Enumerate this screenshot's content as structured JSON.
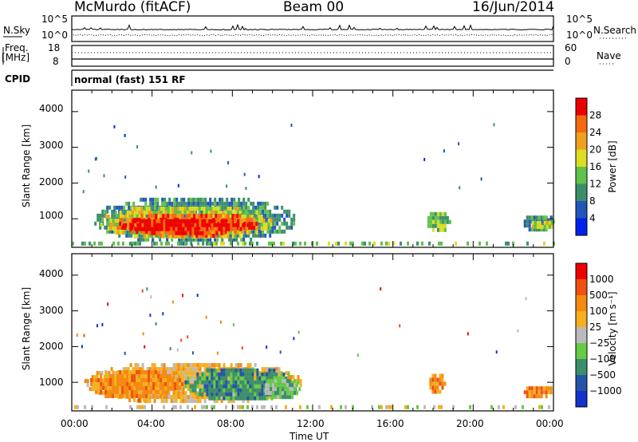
{
  "header": {
    "station": "McMurdo (fitACF)",
    "beam": "Beam 00",
    "date": "16/Jun/2014"
  },
  "top_panels": {
    "nsky_label": "N.Sky",
    "nsky_ticks": [
      "10^5",
      "10^0"
    ],
    "nsearch_label": "N.Search",
    "nsearch_ticks": [
      "10^5",
      "10^0"
    ],
    "freq_label_1": "Freq.",
    "freq_label_2": "[MHz]",
    "freq_ticks": [
      "18",
      "8"
    ],
    "nave_label": "Nave",
    "nave_ticks": [
      "60",
      "0"
    ],
    "cpid_label": "CPID",
    "cpid_text": "normal (fast) 151 RF"
  },
  "chart_data": [
    {
      "type": "heatmap",
      "name": "power",
      "ylabel": "Slant Range [km]",
      "ylim": [
        200,
        4600
      ],
      "yticks": [
        "1000",
        "2000",
        "3000",
        "4000"
      ],
      "colorbar_label": "Power [dB]",
      "colorbar_ticks": [
        "4",
        "8",
        "12",
        "16",
        "20",
        "24",
        "28"
      ],
      "colorbar_colors": [
        "#0022ee",
        "#2255bb",
        "#3a8f6a",
        "#5fc24a",
        "#dddd22",
        "#f0a020",
        "#f56a10",
        "#ee0000"
      ],
      "regions": [
        {
          "x0": 1.0,
          "x1": 11.2,
          "y0": 350,
          "y1": 1700,
          "level": 2
        },
        {
          "x0": 1.3,
          "x1": 10.0,
          "y0": 450,
          "y1": 1450,
          "level": 4
        },
        {
          "x0": 2.0,
          "x1": 9.3,
          "y0": 550,
          "y1": 1250,
          "level": 6
        },
        {
          "x0": 2.4,
          "x1": 8.8,
          "y0": 600,
          "y1": 1100,
          "level": 7
        },
        {
          "x0": 17.6,
          "x1": 18.8,
          "y0": 650,
          "y1": 1300,
          "level": 3
        },
        {
          "x0": 22.4,
          "x1": 24.0,
          "y0": 650,
          "y1": 1200,
          "level": 2
        },
        {
          "x0": 22.8,
          "x1": 24.0,
          "y0": 750,
          "y1": 1050,
          "level": 4
        },
        {
          "x0": 0.0,
          "x1": 24.0,
          "y0": 250,
          "y1": 360,
          "level": 3
        }
      ]
    },
    {
      "type": "heatmap",
      "name": "velocity",
      "ylabel": "Slant Range [km]",
      "ylim": [
        200,
        4600
      ],
      "yticks": [
        "1000",
        "2000",
        "3000",
        "4000"
      ],
      "xticks": [
        "00:00",
        "04:00",
        "08:00",
        "12:00",
        "16:00",
        "20:00",
        "00:00"
      ],
      "xlabel": "Time UT",
      "colorbar_label": "Velocity [m s⁻¹]",
      "colorbar_ticks": [
        "1000",
        "500",
        "100",
        "25",
        "−25",
        "−100",
        "−500",
        "−1000"
      ],
      "colorbar_colors": [
        "#1133cc",
        "#2255aa",
        "#3a8f6a",
        "#66cc44",
        "#bbbbbb",
        "#f5b020",
        "#f58a10",
        "#f05010",
        "#ee0000"
      ],
      "regions": [
        {
          "x0": 0.5,
          "x1": 11.5,
          "y0": 450,
          "y1": 1650,
          "level": 5
        },
        {
          "x0": 0.8,
          "x1": 5.5,
          "y0": 550,
          "y1": 1450,
          "level": 6
        },
        {
          "x0": 5.5,
          "x1": 11.3,
          "y0": 500,
          "y1": 1500,
          "level": 2
        },
        {
          "x0": 9.5,
          "x1": 11.3,
          "y0": 550,
          "y1": 1200,
          "level": 3
        },
        {
          "x0": 17.7,
          "x1": 18.6,
          "y0": 700,
          "y1": 1350,
          "level": 6
        },
        {
          "x0": 22.4,
          "x1": 24.0,
          "y0": 600,
          "y1": 1000,
          "level": 6
        },
        {
          "x0": 0.0,
          "x1": 24.0,
          "y0": 250,
          "y1": 360,
          "level": 4
        }
      ]
    }
  ]
}
